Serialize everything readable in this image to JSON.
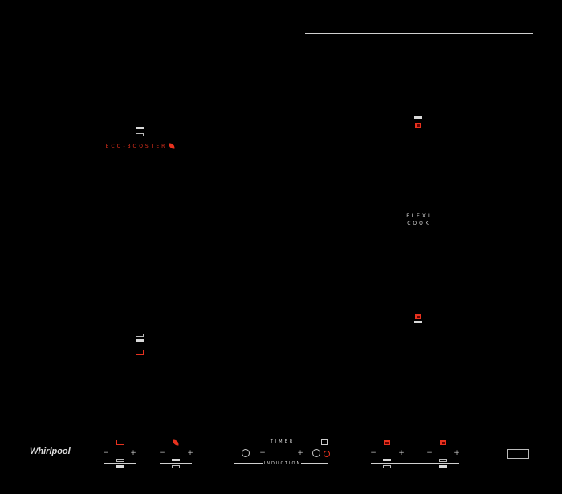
{
  "brand": "Whirlpool",
  "zones": {
    "eco_booster_label": "ECO-BOOSTER",
    "flexi_label_1": "FLEXI",
    "flexi_label_2": "COOK"
  },
  "controls": {
    "minus": "−",
    "plus": "+",
    "timer_label": "TIMER",
    "induction_label": "INDUCTION"
  },
  "icons": [
    "pot-icon",
    "leaf-icon",
    "flexi-zone-icon",
    "power-icon",
    "lock-icon",
    "timer-icon"
  ],
  "colors": {
    "background": "#000000",
    "accent": "#e8321e",
    "lines": "#cfcfcf"
  }
}
